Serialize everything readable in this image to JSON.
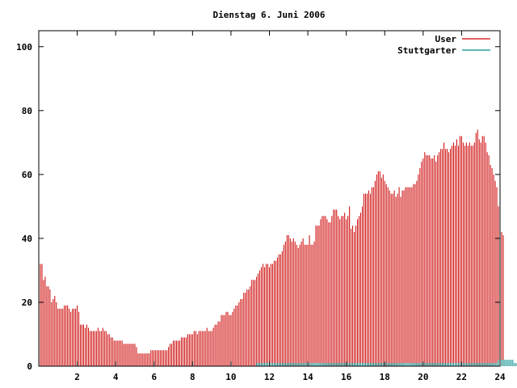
{
  "chart_data": {
    "type": "bar",
    "title": "Dienstag 6. Juni 2006",
    "xlabel": "",
    "ylabel": "",
    "xlim": [
      0,
      24
    ],
    "ylim": [
      0,
      105
    ],
    "x_ticks": [
      "2",
      "4",
      "6",
      "8",
      "10",
      "12",
      "14",
      "16",
      "18",
      "20",
      "22",
      "24"
    ],
    "y_ticks": [
      "0",
      "20",
      "40",
      "60",
      "80",
      "100"
    ],
    "grid": false,
    "legend_position": "top-right",
    "bin_minutes": 5,
    "series": [
      {
        "name": "User",
        "color": "#cc0000",
        "values": [
          35,
          32,
          32,
          27,
          28,
          25,
          25,
          24,
          20,
          21,
          22,
          20,
          18,
          18,
          18,
          18,
          19,
          19,
          19,
          18,
          17,
          18,
          18,
          18,
          19,
          17,
          13,
          13,
          13,
          12,
          13,
          12,
          11,
          11,
          11,
          11,
          11,
          12,
          11,
          11,
          12,
          11,
          11,
          10,
          10,
          9,
          9,
          8,
          8,
          8,
          8,
          8,
          8,
          7,
          7,
          7,
          7,
          7,
          7,
          7,
          7,
          6,
          4,
          4,
          4,
          4,
          4,
          4,
          4,
          4,
          5,
          5,
          5,
          5,
          5,
          5,
          5,
          5,
          5,
          5,
          5,
          6,
          7,
          7,
          8,
          8,
          8,
          8,
          8,
          9,
          9,
          9,
          9,
          10,
          10,
          10,
          10,
          11,
          11,
          10,
          11,
          11,
          11,
          11,
          11,
          12,
          11,
          11,
          11,
          12,
          13,
          13,
          14,
          14,
          16,
          16,
          16,
          17,
          17,
          16,
          16,
          17,
          18,
          19,
          19,
          20,
          21,
          21,
          23,
          23,
          24,
          24,
          25,
          27,
          27,
          27,
          28,
          29,
          30,
          31,
          32,
          31,
          32,
          32,
          31,
          32,
          32,
          33,
          33,
          34,
          35,
          35,
          36,
          38,
          39,
          41,
          41,
          40,
          39,
          40,
          39,
          38,
          37,
          38,
          39,
          40,
          38,
          38,
          38,
          41,
          38,
          38,
          39,
          44,
          44,
          44,
          46,
          47,
          47,
          47,
          46,
          45,
          45,
          47,
          49,
          49,
          49,
          47,
          46,
          47,
          47,
          48,
          46,
          47,
          50,
          43,
          44,
          42,
          44,
          46,
          47,
          48,
          50,
          54,
          54,
          54,
          55,
          54,
          56,
          56,
          58,
          60,
          61,
          61,
          59,
          60,
          58,
          57,
          56,
          55,
          54,
          54,
          55,
          53,
          54,
          56,
          53,
          55,
          55,
          56,
          56,
          56,
          56,
          56,
          57,
          57,
          58,
          60,
          62,
          64,
          65,
          67,
          66,
          66,
          66,
          65,
          65,
          66,
          64,
          66,
          67,
          68,
          68,
          70,
          68,
          68,
          67,
          68,
          69,
          70,
          69,
          71,
          69,
          72,
          72,
          70,
          69,
          70,
          69,
          70,
          69,
          69,
          70,
          73,
          74,
          71,
          70,
          72,
          72,
          70,
          67,
          66,
          63,
          62,
          60,
          58,
          56,
          50,
          45,
          42,
          41
        ]
      },
      {
        "name": "Stuttgarter",
        "color": "#008b8b",
        "values": [
          0,
          0,
          0,
          0,
          0,
          0,
          0,
          0,
          0,
          0,
          0,
          0,
          0,
          0,
          0,
          0,
          0,
          0,
          0,
          0,
          0,
          0,
          0,
          0,
          0,
          0,
          0,
          0,
          0,
          0,
          0,
          0,
          0,
          0,
          0,
          0,
          0,
          0,
          0,
          0,
          0,
          0,
          0,
          0,
          0,
          0,
          0,
          0,
          0,
          0,
          0,
          0,
          0,
          0,
          0,
          0,
          0,
          0,
          0,
          0,
          0,
          0,
          0,
          0,
          0,
          0,
          0,
          0,
          0,
          0,
          0,
          0,
          0,
          0,
          0,
          0,
          0,
          0,
          0,
          0,
          0,
          0,
          0,
          0,
          0,
          0,
          0,
          0,
          0,
          0,
          0,
          0,
          0,
          0,
          0,
          0,
          0,
          0,
          0,
          0,
          0,
          0,
          0,
          0,
          0,
          0,
          0,
          0,
          0,
          0,
          0,
          0,
          0,
          0,
          0,
          0,
          0,
          0,
          0,
          0,
          0,
          0,
          0,
          0,
          0,
          0,
          0,
          0,
          0,
          0,
          0,
          0,
          0,
          0,
          0,
          0,
          1,
          1,
          1,
          1,
          1,
          1,
          1,
          1,
          1,
          1,
          1,
          1,
          1,
          1,
          1,
          1,
          1,
          1,
          1,
          1,
          1,
          1,
          1,
          1,
          1,
          1,
          1,
          1,
          1,
          1,
          1,
          1,
          1,
          1,
          1,
          1,
          1,
          1,
          1,
          1,
          1,
          1,
          1,
          1,
          1,
          1,
          1,
          1,
          1,
          1,
          1,
          1,
          1,
          1,
          1,
          1,
          1,
          1,
          1,
          1,
          1,
          1,
          1,
          1,
          1,
          1,
          1,
          1,
          1,
          1,
          1,
          1,
          1,
          1,
          1,
          1,
          1,
          1,
          1,
          1,
          1,
          1,
          1,
          1,
          1,
          1,
          1,
          1,
          1,
          1,
          1,
          1,
          1,
          1,
          1,
          1,
          1,
          1,
          1,
          1,
          1,
          1,
          1,
          1,
          1,
          1,
          1,
          1,
          1,
          1,
          1,
          1,
          1,
          1,
          1,
          1,
          1,
          1,
          1,
          1,
          1,
          1,
          1,
          1,
          1,
          1,
          1,
          1,
          1,
          1,
          1,
          1,
          1,
          1,
          1,
          1,
          1,
          1,
          1,
          1,
          1,
          1,
          1,
          1,
          1,
          1,
          1,
          1,
          1,
          1,
          1,
          2,
          2,
          2,
          2,
          2,
          2,
          2,
          2,
          2,
          2,
          1,
          1,
          1
        ]
      }
    ]
  }
}
